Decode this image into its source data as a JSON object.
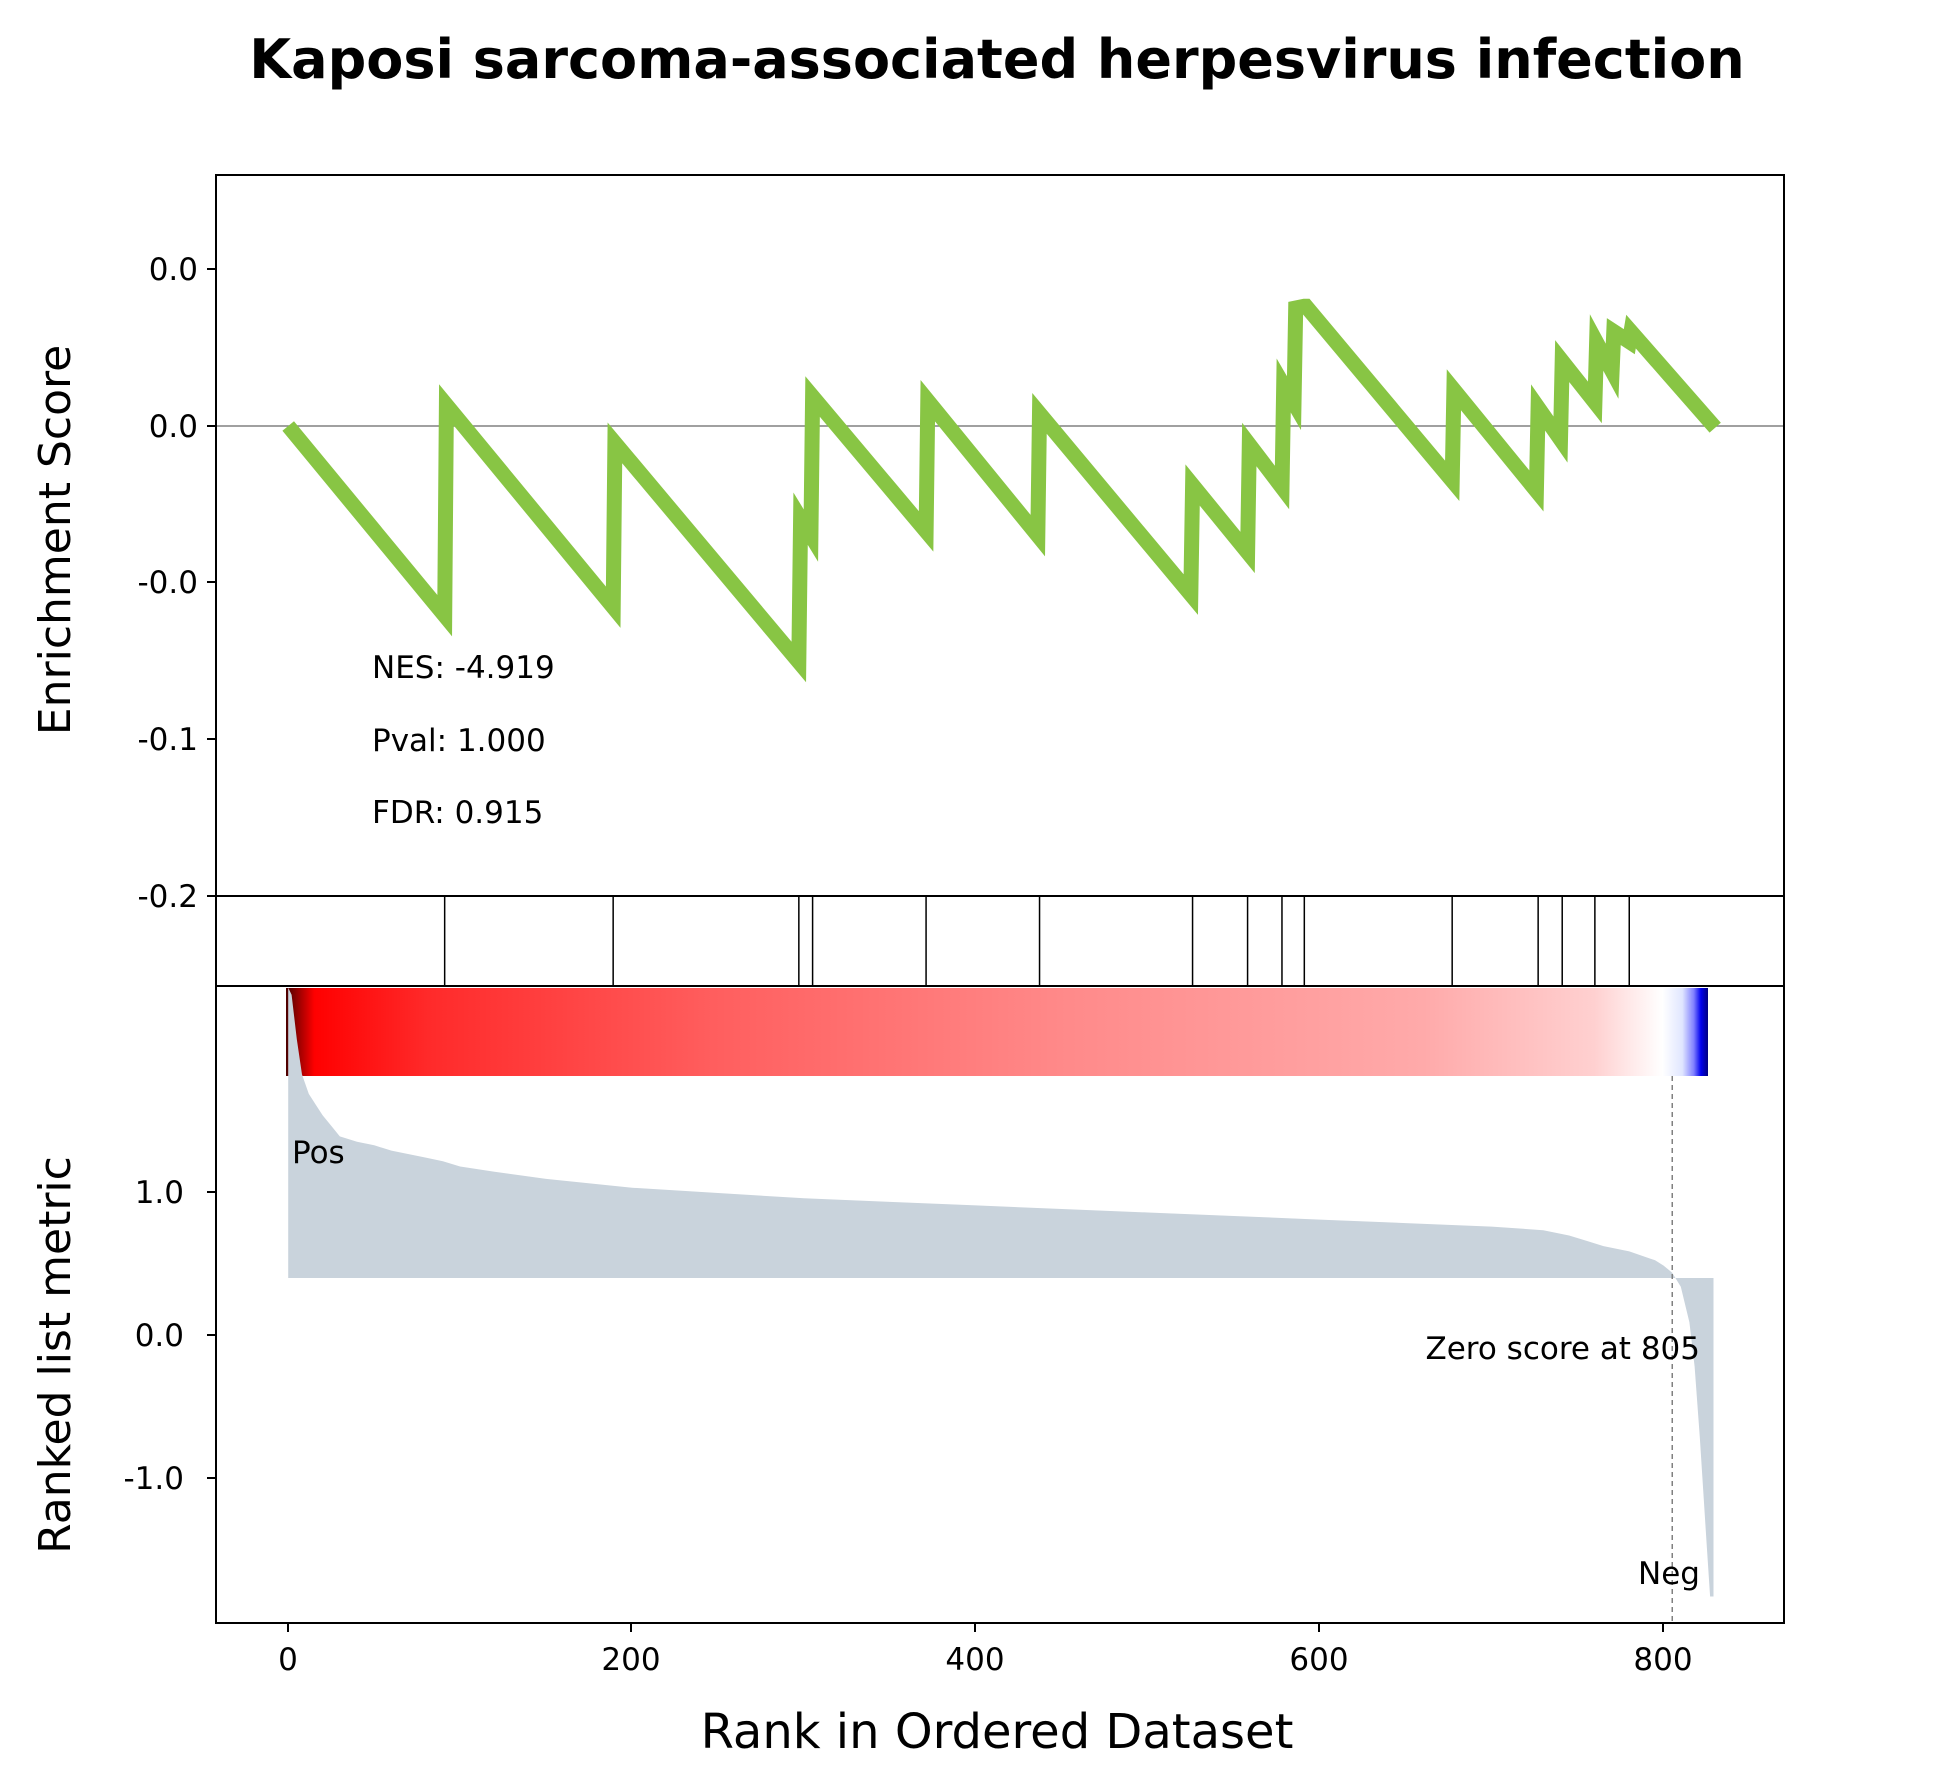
{
  "colors": {
    "es_line": "#88c544",
    "metric_fill": "#c9d3dc",
    "pos_label": "#ff0000",
    "neg_label": "#0000ff",
    "hit_line": "#000000",
    "zero_line": "#808080"
  },
  "chart_data": [
    {
      "type": "line",
      "title": "Kaposi sarcoma-associated herpesvirus infection",
      "ylabel": "Enrichment Score",
      "xlim": [
        -42,
        870
      ],
      "y_tick_labels": [
        "0.0",
        "0.0",
        "-0.0",
        "-0.1",
        "-0.2"
      ],
      "series": [
        {
          "x": [
            0,
            91,
            92,
            189,
            190,
            297,
            298,
            304,
            305,
            371,
            372,
            436,
            437,
            525,
            526,
            558,
            559,
            578,
            579,
            585,
            586,
            591,
            592,
            677,
            678,
            726,
            727,
            740,
            741,
            760,
            761,
            770,
            771,
            780,
            781,
            830
          ],
          "y": [
            0.0,
            -0.225,
            0.025,
            -0.215,
            -0.02,
            -0.28,
            -0.11,
            -0.13,
            0.035,
            -0.125,
            0.03,
            -0.13,
            0.015,
            -0.2,
            -0.07,
            -0.15,
            -0.022,
            -0.073,
            0.048,
            0.027,
            0.14,
            0.142,
            0.142,
            -0.065,
            0.043,
            -0.077,
            0.022,
            -0.016,
            0.077,
            0.028,
            0.099,
            0.065,
            0.112,
            0.1,
            0.112,
            -0.002
          ]
        }
      ],
      "annotations": [
        "NES: -4.919",
        "Pval: 1.000",
        "FDR: 0.915"
      ]
    },
    {
      "type": "hits",
      "hit_ranks": [
        91,
        189,
        297,
        305,
        371,
        437,
        526,
        558,
        578,
        591,
        677,
        727,
        741,
        760,
        780
      ]
    },
    {
      "type": "area",
      "xlabel": "Rank in Ordered Dataset",
      "ylabel": "Ranked list metric",
      "xlim": [
        -42,
        870
      ],
      "ylim": [
        -1.95,
        1.65
      ],
      "x_ticks": [
        0,
        200,
        400,
        600,
        800
      ],
      "x_tick_labels": [
        "0",
        "200",
        "400",
        "600",
        "800"
      ],
      "y_ticks": [
        1.0,
        0.0,
        -1.0
      ],
      "y_tick_labels": [
        "1.0",
        "0.0",
        "-1.0"
      ],
      "x": [
        0,
        2,
        5,
        8,
        12,
        16,
        20,
        25,
        30,
        40,
        50,
        60,
        70,
        80,
        90,
        100,
        120,
        150,
        200,
        250,
        300,
        350,
        400,
        450,
        500,
        550,
        600,
        650,
        700,
        730,
        745,
        755,
        765,
        780,
        795,
        800,
        805,
        810,
        815,
        818,
        821,
        823,
        825,
        827,
        829
      ],
      "values": [
        1.64,
        1.6,
        1.35,
        1.15,
        1.04,
        0.98,
        0.92,
        0.86,
        0.8,
        0.77,
        0.75,
        0.72,
        0.7,
        0.68,
        0.66,
        0.63,
        0.6,
        0.56,
        0.51,
        0.48,
        0.45,
        0.43,
        0.41,
        0.39,
        0.37,
        0.35,
        0.33,
        0.31,
        0.29,
        0.27,
        0.24,
        0.21,
        0.18,
        0.15,
        0.1,
        0.07,
        0.03,
        -0.05,
        -0.25,
        -0.5,
        -0.9,
        -1.2,
        -1.5,
        -1.8,
        -1.8
      ],
      "zero_cross": 805,
      "zero_label": "Zero score at 805",
      "pos_label": "Pos",
      "neg_label": "Neg"
    }
  ]
}
